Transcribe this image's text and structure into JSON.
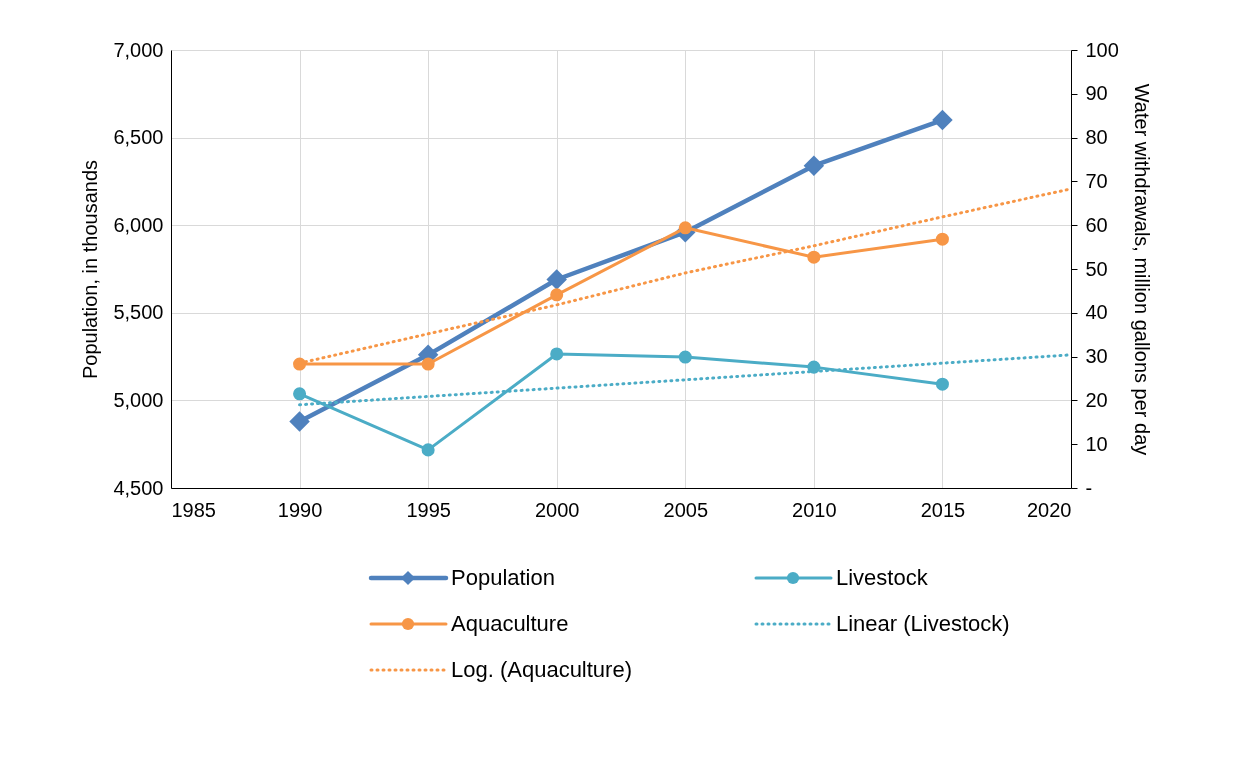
{
  "chart_data": {
    "type": "line",
    "x": [
      1990,
      1995,
      2000,
      2005,
      2010,
      2015
    ],
    "xlim": [
      1985,
      2020
    ],
    "xticks": [
      1985,
      1990,
      1995,
      2000,
      2005,
      2010,
      2015,
      2020
    ],
    "ylim": [
      4500,
      7000
    ],
    "yticks": [
      {
        "value": 4500,
        "label": "4,500"
      },
      {
        "value": 5000,
        "label": "5,000"
      },
      {
        "value": 5500,
        "label": "5,500"
      },
      {
        "value": 6000,
        "label": "6,000"
      },
      {
        "value": 6500,
        "label": "6,500"
      },
      {
        "value": 7000,
        "label": "7,000"
      }
    ],
    "y2lim": [
      0,
      100
    ],
    "y2ticks": [
      {
        "value": 0,
        "label": "-"
      },
      10,
      20,
      30,
      40,
      50,
      60,
      70,
      80,
      90,
      100
    ],
    "ylabel": "Population, in thousands",
    "y2label": "Water withdrawals, million gallons per day",
    "grid": true,
    "legend": "bottom",
    "series": [
      {
        "name": "Population",
        "color": "#4f81bd",
        "marker": "diamond",
        "values": [
          4880,
          5260,
          5690,
          5960,
          6340,
          6600
        ]
      },
      {
        "name": "Livestock",
        "color": "#4bacc6",
        "marker": "circle",
        "axis": "y2",
        "values": [
          21.5,
          8.7,
          30.6,
          29.9,
          27.6,
          23.7
        ]
      },
      {
        "name": "Aquaculture",
        "color": "#f79646",
        "marker": "circle",
        "axis": "y2",
        "values": [
          28.3,
          28.3,
          44.1,
          59.4,
          52.7,
          56.8
        ]
      },
      {
        "name": "Linear (Livestock)",
        "color": "#4bacc6",
        "marker": "none",
        "line_style": "dotted",
        "axis": "y2",
        "x": [
          1990,
          2020
        ],
        "values": [
          19.0,
          30.4
        ]
      },
      {
        "name": "Log. (Aquaculture)",
        "color": "#f79646",
        "marker": "none",
        "line_style": "dotted",
        "axis": "y2",
        "x": [
          1990,
          1995,
          2000,
          2005,
          2010,
          2015,
          2020
        ],
        "values": [
          28.5,
          35.2,
          41.8,
          49.1,
          55.3,
          61.9,
          68.3
        ]
      }
    ]
  }
}
